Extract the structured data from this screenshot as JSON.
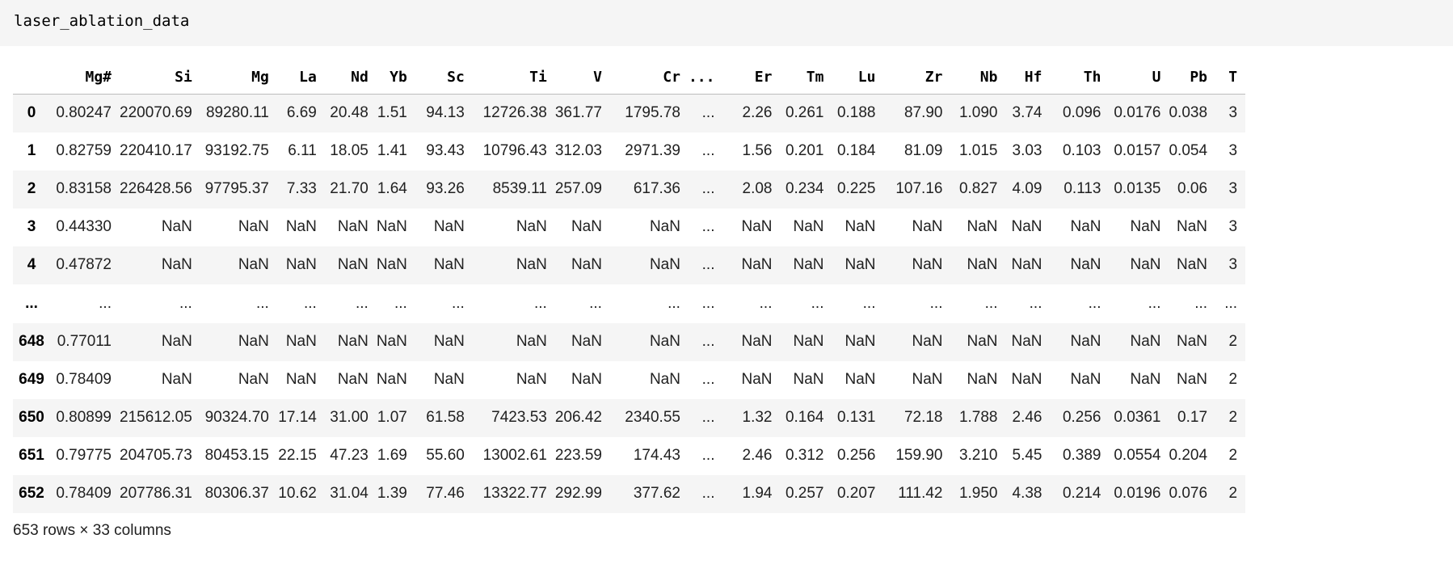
{
  "code_cell": {
    "text": "laser_ablation_data"
  },
  "dataframe": {
    "columns": [
      "Mg#",
      "Si",
      "Mg",
      "La",
      "Nd",
      "Yb",
      "Sc",
      "Ti",
      "V",
      "Cr",
      "...",
      "Er",
      "Tm",
      "Lu",
      "Zr",
      "Nb",
      "Hf",
      "Th",
      "U",
      "Pb",
      "T"
    ],
    "rows": [
      {
        "index": "0",
        "cells": [
          "0.80247",
          "220070.69",
          "89280.11",
          "6.69",
          "20.48",
          "1.51",
          "94.13",
          "12726.38",
          "361.77",
          "1795.78",
          "...",
          "2.26",
          "0.261",
          "0.188",
          "87.90",
          "1.090",
          "3.74",
          "0.096",
          "0.0176",
          "0.038",
          "3"
        ]
      },
      {
        "index": "1",
        "cells": [
          "0.82759",
          "220410.17",
          "93192.75",
          "6.11",
          "18.05",
          "1.41",
          "93.43",
          "10796.43",
          "312.03",
          "2971.39",
          "...",
          "1.56",
          "0.201",
          "0.184",
          "81.09",
          "1.015",
          "3.03",
          "0.103",
          "0.0157",
          "0.054",
          "3"
        ]
      },
      {
        "index": "2",
        "cells": [
          "0.83158",
          "226428.56",
          "97795.37",
          "7.33",
          "21.70",
          "1.64",
          "93.26",
          "8539.11",
          "257.09",
          "617.36",
          "...",
          "2.08",
          "0.234",
          "0.225",
          "107.16",
          "0.827",
          "4.09",
          "0.113",
          "0.0135",
          "0.06",
          "3"
        ]
      },
      {
        "index": "3",
        "cells": [
          "0.44330",
          "NaN",
          "NaN",
          "NaN",
          "NaN",
          "NaN",
          "NaN",
          "NaN",
          "NaN",
          "NaN",
          "...",
          "NaN",
          "NaN",
          "NaN",
          "NaN",
          "NaN",
          "NaN",
          "NaN",
          "NaN",
          "NaN",
          "3"
        ]
      },
      {
        "index": "4",
        "cells": [
          "0.47872",
          "NaN",
          "NaN",
          "NaN",
          "NaN",
          "NaN",
          "NaN",
          "NaN",
          "NaN",
          "NaN",
          "...",
          "NaN",
          "NaN",
          "NaN",
          "NaN",
          "NaN",
          "NaN",
          "NaN",
          "NaN",
          "NaN",
          "3"
        ]
      },
      {
        "index": "...",
        "cells": [
          "...",
          "...",
          "...",
          "...",
          "...",
          "...",
          "...",
          "...",
          "...",
          "...",
          "...",
          "...",
          "...",
          "...",
          "...",
          "...",
          "...",
          "...",
          "...",
          "...",
          "..."
        ]
      },
      {
        "index": "648",
        "cells": [
          "0.77011",
          "NaN",
          "NaN",
          "NaN",
          "NaN",
          "NaN",
          "NaN",
          "NaN",
          "NaN",
          "NaN",
          "...",
          "NaN",
          "NaN",
          "NaN",
          "NaN",
          "NaN",
          "NaN",
          "NaN",
          "NaN",
          "NaN",
          "2"
        ]
      },
      {
        "index": "649",
        "cells": [
          "0.78409",
          "NaN",
          "NaN",
          "NaN",
          "NaN",
          "NaN",
          "NaN",
          "NaN",
          "NaN",
          "NaN",
          "...",
          "NaN",
          "NaN",
          "NaN",
          "NaN",
          "NaN",
          "NaN",
          "NaN",
          "NaN",
          "NaN",
          "2"
        ]
      },
      {
        "index": "650",
        "cells": [
          "0.80899",
          "215612.05",
          "90324.70",
          "17.14",
          "31.00",
          "1.07",
          "61.58",
          "7423.53",
          "206.42",
          "2340.55",
          "...",
          "1.32",
          "0.164",
          "0.131",
          "72.18",
          "1.788",
          "2.46",
          "0.256",
          "0.0361",
          "0.17",
          "2"
        ]
      },
      {
        "index": "651",
        "cells": [
          "0.79775",
          "204705.73",
          "80453.15",
          "22.15",
          "47.23",
          "1.69",
          "55.60",
          "13002.61",
          "223.59",
          "174.43",
          "...",
          "2.46",
          "0.312",
          "0.256",
          "159.90",
          "3.210",
          "5.45",
          "0.389",
          "0.0554",
          "0.204",
          "2"
        ]
      },
      {
        "index": "652",
        "cells": [
          "0.78409",
          "207786.31",
          "80306.37",
          "10.62",
          "31.04",
          "1.39",
          "77.46",
          "13322.77",
          "292.99",
          "377.62",
          "...",
          "1.94",
          "0.257",
          "0.207",
          "111.42",
          "1.950",
          "4.38",
          "0.214",
          "0.0196",
          "0.076",
          "2"
        ]
      }
    ],
    "shape_text": "653 rows × 33 columns"
  }
}
